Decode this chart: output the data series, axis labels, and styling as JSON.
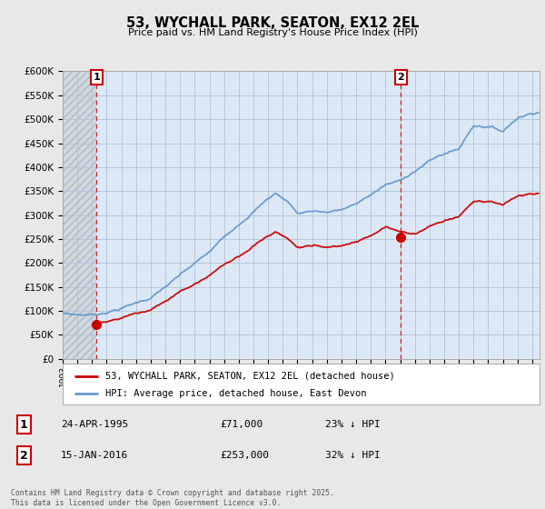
{
  "title": "53, WYCHALL PARK, SEATON, EX12 2EL",
  "subtitle": "Price paid vs. HM Land Registry's House Price Index (HPI)",
  "legend_entry1": "53, WYCHALL PARK, SEATON, EX12 2EL (detached house)",
  "legend_entry2": "HPI: Average price, detached house, East Devon",
  "transaction1": {
    "label": "1",
    "date": "24-APR-1995",
    "price": "£71,000",
    "hpi": "23% ↓ HPI",
    "year": 1995.31
  },
  "transaction2": {
    "label": "2",
    "date": "15-JAN-2016",
    "price": "£253,000",
    "hpi": "32% ↓ HPI",
    "year": 2016.04
  },
  "footnote": "Contains HM Land Registry data © Crown copyright and database right 2025.\nThis data is licensed under the Open Government Licence v3.0.",
  "ylim": [
    0,
    600000
  ],
  "yticks": [
    0,
    50000,
    100000,
    150000,
    200000,
    250000,
    300000,
    350000,
    400000,
    450000,
    500000,
    550000,
    600000
  ],
  "xlim_start": 1993.0,
  "xlim_end": 2025.5,
  "red_color": "#cc0000",
  "blue_color": "#6699cc",
  "vline_color": "#cc0000",
  "bg_color": "#e8e8e8",
  "plot_bg": "#dce8f5",
  "grid_color": "#b0c4d8",
  "hatch_color": "#c0c8d0"
}
